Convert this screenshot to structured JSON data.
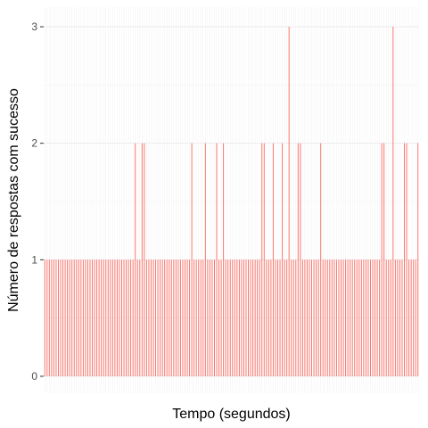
{
  "chart_data": {
    "type": "bar",
    "title": "",
    "xlabel": "Tempo (segundos)",
    "ylabel": "Número de respostas com sucesso",
    "x_tick_labels": [],
    "y_ticks": [
      0,
      1,
      2,
      3
    ],
    "y_tick_labels": [
      "0",
      "1",
      "2",
      "3"
    ],
    "ylim": [
      0,
      3
    ],
    "grid": true,
    "legend": "none",
    "colors": {
      "bar": "#F8766D",
      "panel": "#FFFFFF",
      "grid": "#EBEBEB"
    },
    "values": [
      1,
      1,
      1,
      1,
      1,
      1,
      1,
      1,
      1,
      1,
      1,
      1,
      1,
      1,
      1,
      1,
      1,
      1,
      1,
      1,
      1,
      1,
      1,
      1,
      1,
      1,
      1,
      1,
      1,
      1,
      1,
      1,
      1,
      1,
      1,
      1,
      1,
      1,
      1,
      1,
      2,
      1,
      1,
      2,
      2,
      1,
      1,
      1,
      1,
      1,
      1,
      1,
      1,
      1,
      1,
      1,
      1,
      1,
      1,
      1,
      1,
      1,
      1,
      1,
      1,
      2,
      1,
      1,
      1,
      1,
      1,
      2,
      1,
      1,
      1,
      1,
      2,
      1,
      1,
      2,
      1,
      1,
      1,
      1,
      1,
      1,
      1,
      1,
      1,
      1,
      1,
      1,
      1,
      1,
      1,
      1,
      2,
      2,
      1,
      1,
      1,
      2,
      1,
      1,
      1,
      2,
      1,
      1,
      3,
      1,
      1,
      1,
      2,
      2,
      1,
      1,
      1,
      1,
      1,
      1,
      1,
      1,
      2,
      1,
      1,
      1,
      1,
      1,
      1,
      1,
      1,
      1,
      1,
      1,
      1,
      1,
      1,
      1,
      1,
      1,
      1,
      1,
      1,
      1,
      1,
      1,
      1,
      1,
      1,
      2,
      2,
      1,
      1,
      1,
      3,
      1,
      1,
      1,
      1,
      2,
      2,
      1,
      1,
      1,
      1,
      2
    ]
  },
  "axes": {
    "x_title": "Tempo (segundos)",
    "y_title": "Número de respostas com sucesso"
  }
}
